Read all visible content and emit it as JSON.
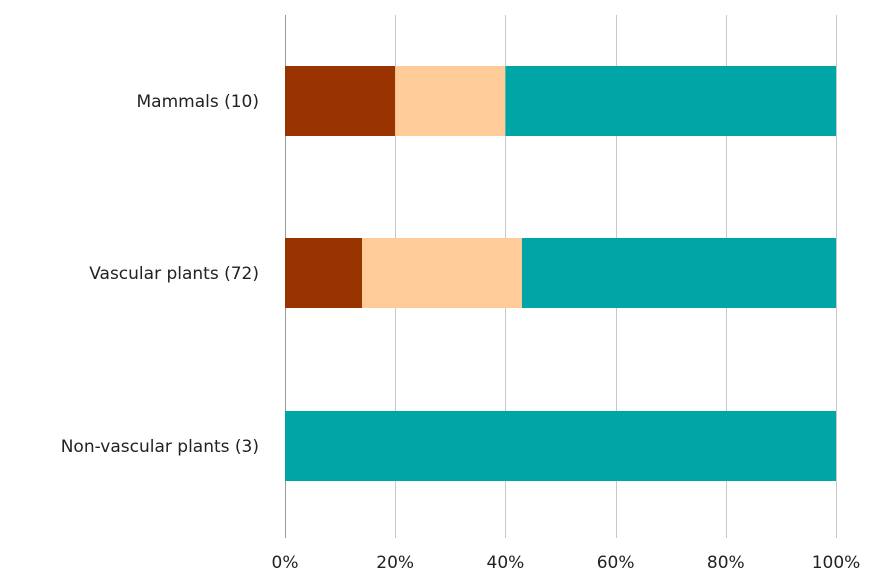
{
  "chart_data": {
    "type": "bar",
    "orientation": "horizontal",
    "stacked": "percent",
    "categories": [
      "Mammals (10)",
      "Vascular plants (72)",
      "Non-vascular plants (3)"
    ],
    "series": [
      {
        "color": "#993300",
        "values": [
          20,
          14,
          0
        ]
      },
      {
        "color": "#FFCC99",
        "values": [
          20,
          29,
          0
        ]
      },
      {
        "color": "#00A6A6",
        "values": [
          60,
          57,
          100
        ]
      }
    ],
    "xlim": [
      0,
      100
    ],
    "x_ticks": [
      "0%",
      "20%",
      "40%",
      "60%",
      "80%",
      "100%"
    ],
    "grid": "vertical",
    "legend": "none"
  }
}
